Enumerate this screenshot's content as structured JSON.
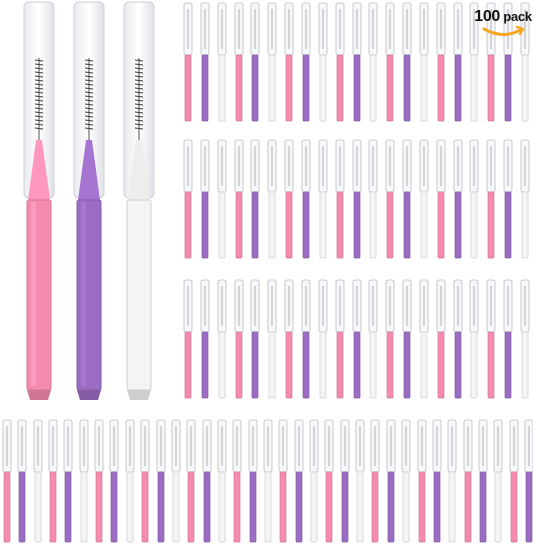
{
  "badge": {
    "count": "100",
    "unit": "pack",
    "arrow_color": "#f5a623"
  },
  "product": {
    "item_icon": "interdental-brush-icon",
    "colors": {
      "pink": "#f58cb0",
      "purple": "#9a6cc2",
      "white": "#f4f4f4"
    },
    "featured_color_order": [
      "pink",
      "purple",
      "white"
    ],
    "grid_color_cycle": [
      "pink",
      "purple",
      "white"
    ]
  }
}
